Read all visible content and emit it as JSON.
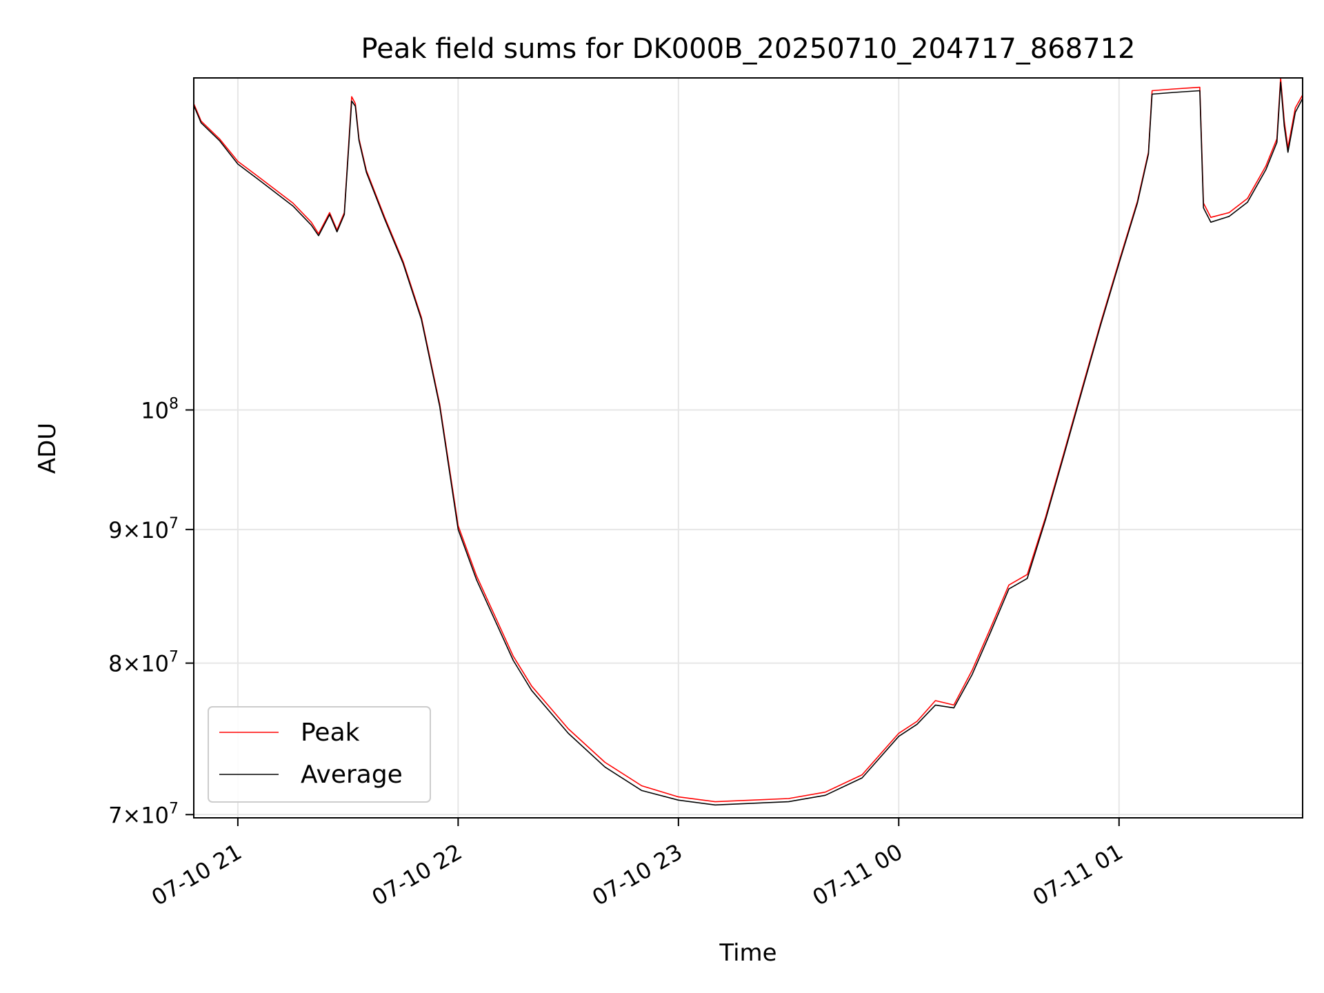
{
  "chart_data": {
    "type": "line",
    "title": "Peak field sums for DK000B_20250710_204717_868712",
    "xlabel": "Time",
    "ylabel": "ADU",
    "yscale": "log",
    "ylim": [
      69800000,
      134000000
    ],
    "xlim": [
      "2025-07-10 20:48",
      "2025-07-11 01:50"
    ],
    "grid": true,
    "legend_position": "lower-left",
    "x_ticks": [
      {
        "value": "2025-07-10 21:00",
        "label": "07-10 21"
      },
      {
        "value": "2025-07-10 22:00",
        "label": "07-10 22"
      },
      {
        "value": "2025-07-10 23:00",
        "label": "07-10 23"
      },
      {
        "value": "2025-07-11 00:00",
        "label": "07-11 00"
      },
      {
        "value": "2025-07-11 01:00",
        "label": "07-11 01"
      }
    ],
    "y_ticks": [
      {
        "value": 70000000,
        "mantissa": "7",
        "base": "10",
        "exp": "7"
      },
      {
        "value": 80000000,
        "mantissa": "8",
        "base": "10",
        "exp": "7"
      },
      {
        "value": 90000000,
        "mantissa": "9",
        "base": "10",
        "exp": "7"
      },
      {
        "value": 100000000,
        "mantissa": "",
        "base": "10",
        "exp": "8"
      }
    ],
    "x": [
      "2025-07-10 20:48",
      "2025-07-10 20:50",
      "2025-07-10 20:55",
      "2025-07-10 21:00",
      "2025-07-10 21:05",
      "2025-07-10 21:10",
      "2025-07-10 21:15",
      "2025-07-10 21:20",
      "2025-07-10 21:22",
      "2025-07-10 21:25",
      "2025-07-10 21:27",
      "2025-07-10 21:29",
      "2025-07-10 21:31",
      "2025-07-10 21:32",
      "2025-07-10 21:33",
      "2025-07-10 21:35",
      "2025-07-10 21:40",
      "2025-07-10 21:45",
      "2025-07-10 21:50",
      "2025-07-10 21:55",
      "2025-07-10 22:00",
      "2025-07-10 22:05",
      "2025-07-10 22:10",
      "2025-07-10 22:15",
      "2025-07-10 22:20",
      "2025-07-10 22:30",
      "2025-07-10 22:40",
      "2025-07-10 22:50",
      "2025-07-10 23:00",
      "2025-07-10 23:10",
      "2025-07-10 23:20",
      "2025-07-10 23:30",
      "2025-07-10 23:40",
      "2025-07-10 23:50",
      "2025-07-11 00:00",
      "2025-07-11 00:05",
      "2025-07-11 00:10",
      "2025-07-11 00:15",
      "2025-07-11 00:20",
      "2025-07-11 00:25",
      "2025-07-11 00:30",
      "2025-07-11 00:35",
      "2025-07-11 00:40",
      "2025-07-11 00:45",
      "2025-07-11 00:50",
      "2025-07-11 00:55",
      "2025-07-11 01:00",
      "2025-07-11 01:05",
      "2025-07-11 01:08",
      "2025-07-11 01:09",
      "2025-07-11 01:15",
      "2025-07-11 01:22",
      "2025-07-11 01:23",
      "2025-07-11 01:25",
      "2025-07-11 01:30",
      "2025-07-11 01:35",
      "2025-07-11 01:40",
      "2025-07-11 01:43",
      "2025-07-11 01:44",
      "2025-07-11 01:45",
      "2025-07-11 01:46",
      "2025-07-11 01:48",
      "2025-07-11 01:50"
    ],
    "series": [
      {
        "name": "Peak",
        "color": "#ff0000",
        "values": [
          131000000,
          129000000,
          127000000,
          124500000,
          123000000,
          121500000,
          120000000,
          118000000,
          116800000,
          119000000,
          117200000,
          119000000,
          131800000,
          131000000,
          127000000,
          123500000,
          118500000,
          114000000,
          108500000,
          100500000,
          90300000,
          86400000,
          83400000,
          80500000,
          78400000,
          75500000,
          73300000,
          71800000,
          71100000,
          70800000,
          70900000,
          71000000,
          71400000,
          72500000,
          75200000,
          76000000,
          77400000,
          77100000,
          79500000,
          82500000,
          85700000,
          86500000,
          91000000,
          96300000,
          102000000,
          108000000,
          114000000,
          120200000,
          125500000,
          132500000,
          132700000,
          132900000,
          120000000,
          118500000,
          119000000,
          120500000,
          124000000,
          127000000,
          134000000,
          129000000,
          126000000,
          130500000,
          132000000
        ]
      },
      {
        "name": "Average",
        "color": "#000000",
        "values": [
          130800000,
          128800000,
          126800000,
          124200000,
          122700000,
          121200000,
          119700000,
          117700000,
          116600000,
          118800000,
          117000000,
          118800000,
          131300000,
          130700000,
          126800000,
          123300000,
          118300000,
          113800000,
          108300000,
          100300000,
          90000000,
          86100000,
          83100000,
          80200000,
          78100000,
          75200000,
          73000000,
          71500000,
          70900000,
          70600000,
          70700000,
          70800000,
          71200000,
          72300000,
          75000000,
          75800000,
          77100000,
          76900000,
          79200000,
          82200000,
          85400000,
          86200000,
          90800000,
          96100000,
          101800000,
          107800000,
          113800000,
          120000000,
          125300000,
          132100000,
          132300000,
          132500000,
          119500000,
          118000000,
          118600000,
          120100000,
          123600000,
          126600000,
          133500000,
          128400000,
          125500000,
          130000000,
          131600000
        ]
      }
    ]
  }
}
